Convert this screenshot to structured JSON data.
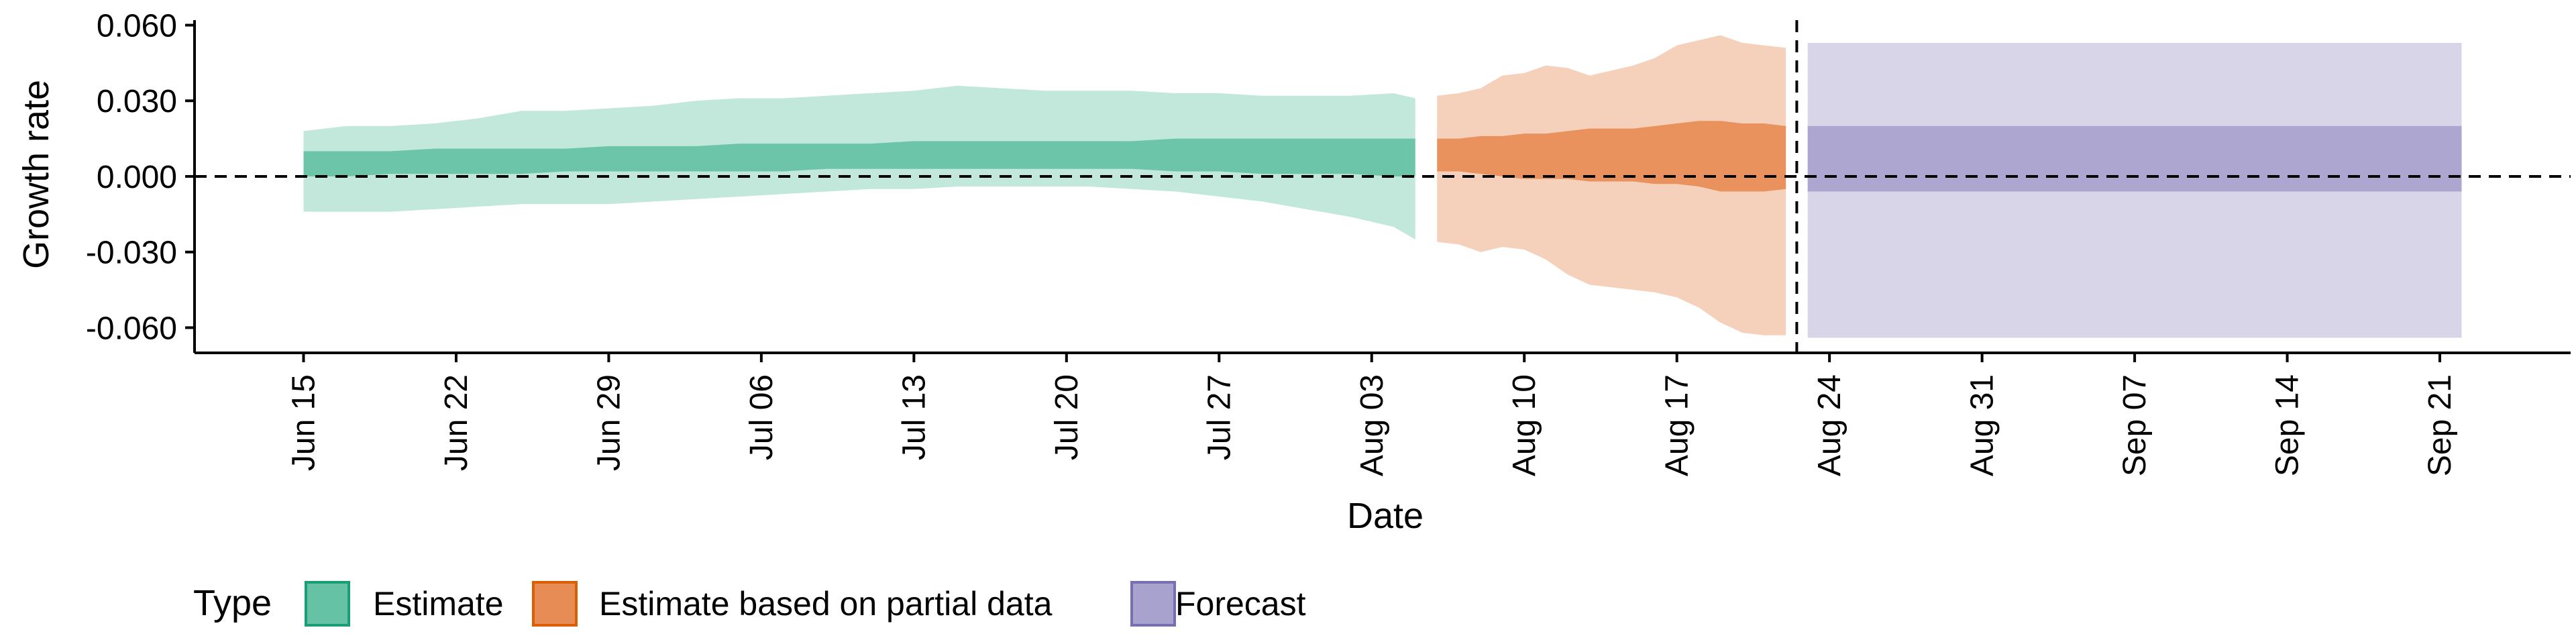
{
  "chart_data": {
    "type": "area",
    "title": "",
    "xlabel": "Date",
    "ylabel": "Growth rate",
    "ylim": [
      -0.07,
      0.062
    ],
    "xlim": [
      "2021-06-10",
      "2021-09-27"
    ],
    "y_ticks": [
      -0.06,
      -0.03,
      0.0,
      0.03,
      0.06
    ],
    "y_tick_labels": [
      "-0.060",
      "-0.030",
      "0.000",
      "0.030",
      "0.060"
    ],
    "x_ticks": [
      "2021-06-15",
      "2021-06-22",
      "2021-06-29",
      "2021-07-06",
      "2021-07-13",
      "2021-07-20",
      "2021-07-27",
      "2021-08-03",
      "2021-08-10",
      "2021-08-17",
      "2021-08-24",
      "2021-08-31",
      "2021-09-07",
      "2021-09-14",
      "2021-09-21"
    ],
    "x_tick_labels": [
      "Jun 15",
      "Jun 22",
      "Jun 29",
      "Jul 06",
      "Jul 13",
      "Jul 20",
      "Jul 27",
      "Aug 03",
      "Aug 10",
      "Aug 17",
      "Aug 24",
      "Aug 31",
      "Sep 07",
      "Sep 14",
      "Sep 21"
    ],
    "reference_lines": {
      "horizontal_y": 0.0,
      "vertical_x": "2021-08-22"
    },
    "grid": false,
    "legend": {
      "title": "Type",
      "position": "bottom"
    },
    "series": [
      {
        "name": "Estimate",
        "color": "#66c2a5",
        "outer_alpha": 0.4,
        "x": [
          "2021-06-15",
          "2021-06-17",
          "2021-06-19",
          "2021-06-21",
          "2021-06-23",
          "2021-06-25",
          "2021-06-27",
          "2021-06-29",
          "2021-07-01",
          "2021-07-03",
          "2021-07-05",
          "2021-07-07",
          "2021-07-09",
          "2021-07-11",
          "2021-07-13",
          "2021-07-15",
          "2021-07-17",
          "2021-07-19",
          "2021-07-21",
          "2021-07-23",
          "2021-07-25",
          "2021-07-27",
          "2021-07-29",
          "2021-07-31",
          "2021-08-02",
          "2021-08-04",
          "2021-08-05"
        ],
        "outer_upper": [
          0.018,
          0.02,
          0.02,
          0.021,
          0.023,
          0.026,
          0.026,
          0.027,
          0.028,
          0.03,
          0.031,
          0.031,
          0.032,
          0.033,
          0.034,
          0.036,
          0.035,
          0.034,
          0.034,
          0.034,
          0.033,
          0.033,
          0.032,
          0.032,
          0.032,
          0.033,
          0.031
        ],
        "inner_upper": [
          0.01,
          0.01,
          0.01,
          0.011,
          0.011,
          0.011,
          0.011,
          0.012,
          0.012,
          0.012,
          0.013,
          0.013,
          0.013,
          0.013,
          0.014,
          0.014,
          0.014,
          0.014,
          0.014,
          0.014,
          0.015,
          0.015,
          0.015,
          0.015,
          0.015,
          0.015,
          0.015
        ],
        "inner_lower": [
          0.0,
          0.0,
          0.001,
          0.001,
          0.001,
          0.001,
          0.002,
          0.002,
          0.002,
          0.002,
          0.002,
          0.002,
          0.003,
          0.003,
          0.003,
          0.003,
          0.003,
          0.003,
          0.003,
          0.003,
          0.002,
          0.002,
          0.001,
          0.001,
          0.001,
          0.0,
          0.0
        ],
        "outer_lower": [
          -0.014,
          -0.014,
          -0.014,
          -0.013,
          -0.012,
          -0.011,
          -0.011,
          -0.011,
          -0.01,
          -0.009,
          -0.008,
          -0.007,
          -0.006,
          -0.005,
          -0.005,
          -0.004,
          -0.004,
          -0.004,
          -0.004,
          -0.005,
          -0.006,
          -0.008,
          -0.01,
          -0.013,
          -0.016,
          -0.02,
          -0.025
        ]
      },
      {
        "name": "Estimate based on partial data",
        "color": "#e78c55",
        "outer_alpha": 0.4,
        "x": [
          "2021-08-06",
          "2021-08-07",
          "2021-08-08",
          "2021-08-09",
          "2021-08-10",
          "2021-08-11",
          "2021-08-12",
          "2021-08-13",
          "2021-08-14",
          "2021-08-15",
          "2021-08-16",
          "2021-08-17",
          "2021-08-18",
          "2021-08-19",
          "2021-08-20",
          "2021-08-21",
          "2021-08-22"
        ],
        "outer_upper": [
          0.032,
          0.033,
          0.035,
          0.04,
          0.041,
          0.044,
          0.043,
          0.04,
          0.042,
          0.044,
          0.047,
          0.052,
          0.054,
          0.056,
          0.053,
          0.052,
          0.051
        ],
        "inner_upper": [
          0.015,
          0.015,
          0.016,
          0.016,
          0.017,
          0.017,
          0.018,
          0.019,
          0.019,
          0.019,
          0.02,
          0.021,
          0.022,
          0.022,
          0.021,
          0.021,
          0.02
        ],
        "inner_lower": [
          0.002,
          0.002,
          0.001,
          0.0,
          -0.001,
          -0.001,
          -0.001,
          -0.002,
          -0.002,
          -0.002,
          -0.003,
          -0.003,
          -0.004,
          -0.006,
          -0.006,
          -0.006,
          -0.005
        ],
        "outer_lower": [
          -0.026,
          -0.027,
          -0.03,
          -0.028,
          -0.029,
          -0.033,
          -0.039,
          -0.043,
          -0.044,
          -0.045,
          -0.046,
          -0.048,
          -0.052,
          -0.058,
          -0.062,
          -0.063,
          -0.063
        ]
      },
      {
        "name": "Forecast",
        "color": "#a8a2ce",
        "outer_alpha": 0.45,
        "x": [
          "2021-08-23",
          "2021-09-22"
        ],
        "outer_upper": [
          0.053,
          0.053
        ],
        "inner_upper": [
          0.02,
          0.02
        ],
        "inner_lower": [
          -0.006,
          -0.006
        ],
        "outer_lower": [
          -0.064,
          -0.064
        ]
      }
    ]
  }
}
